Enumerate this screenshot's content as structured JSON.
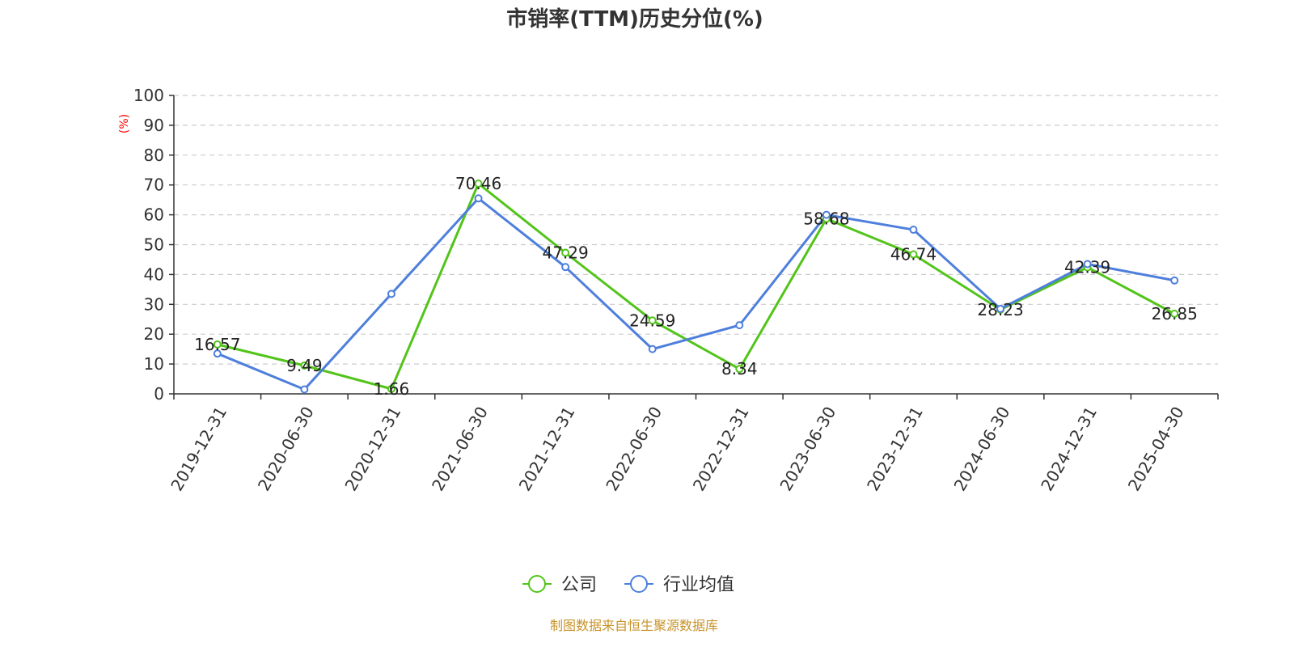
{
  "chart_data": {
    "type": "line",
    "title": "市销率(TTM)历史分位(%)",
    "ylabel": "(%)",
    "xlabel": "",
    "ylim": [
      0,
      100
    ],
    "yticks": [
      0,
      10,
      20,
      30,
      40,
      50,
      60,
      70,
      80,
      90,
      100
    ],
    "grid": true,
    "legend_position": "bottom-center",
    "categories": [
      "2019-12-31",
      "2020-06-30",
      "2020-12-31",
      "2021-06-30",
      "2021-12-31",
      "2022-06-30",
      "2022-12-31",
      "2023-06-30",
      "2023-12-31",
      "2024-06-30",
      "2024-12-31",
      "2025-04-30"
    ],
    "series": [
      {
        "name": "公司",
        "color": "#52c41a",
        "values": [
          16.57,
          9.49,
          1.66,
          70.46,
          47.29,
          24.59,
          8.34,
          58.68,
          46.74,
          28.23,
          42.39,
          26.85
        ],
        "data_labels": [
          "16.57",
          "9.49",
          "1.66",
          "70.46",
          "47.29",
          "24.59",
          "8.34",
          "58.68",
          "46.74",
          "28.23",
          "42.39",
          "26.85"
        ]
      },
      {
        "name": "行业均值",
        "color": "#4e7fdc",
        "values": [
          13.5,
          1.5,
          33.5,
          65.5,
          42.5,
          15.0,
          23.0,
          60.0,
          55.0,
          28.5,
          43.5,
          38.0
        ]
      }
    ]
  },
  "source_note": "制图数据来自恒生聚源数据库",
  "colors": {
    "axis": "#333333",
    "grid": "#cccccc",
    "ylabel": "#ff0000",
    "source": "#c8932a"
  }
}
